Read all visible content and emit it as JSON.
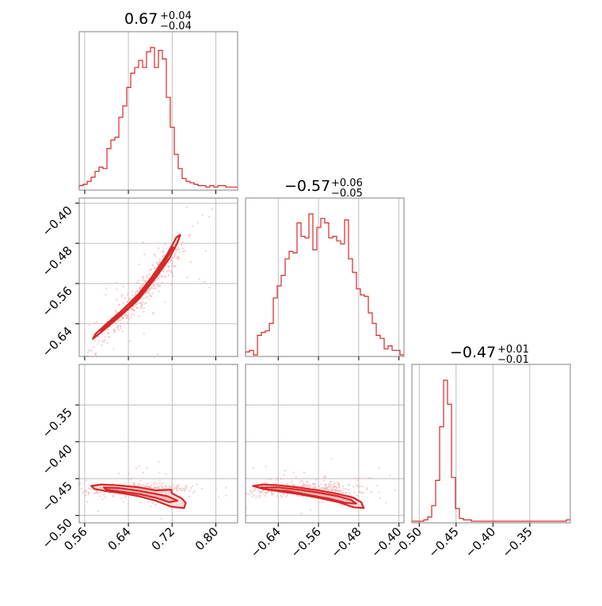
{
  "colors": {
    "accent": "#d62728",
    "fill_light": "#f5c6c7",
    "fill_mid": "#ec9a9c",
    "points": "#f3b6b7"
  },
  "titles": {
    "p0": {
      "median": "0.67",
      "plus": "+0.04",
      "minus": "−0.04"
    },
    "p1": {
      "median": "−0.57",
      "plus": "+0.06",
      "minus": "−0.05"
    },
    "p2": {
      "median": "−0.47",
      "plus": "+0.01",
      "minus": "−0.01"
    }
  },
  "chart_data": {
    "type": "corner",
    "parameters": [
      "p0",
      "p1",
      "p2"
    ],
    "ranges": {
      "p0": [
        0.55,
        0.84
      ],
      "p1": [
        -0.705,
        -0.39
      ],
      "p2": [
        -0.51,
        -0.295
      ]
    },
    "ticks": {
      "p0": [
        0.56,
        0.64,
        0.72,
        0.8
      ],
      "p1": [
        -0.64,
        -0.56,
        -0.48,
        -0.4
      ],
      "p2": [
        -0.5,
        -0.45,
        -0.4,
        -0.35
      ]
    },
    "tick_labels": {
      "p0": [
        "0.56",
        "0.64",
        "0.72",
        "0.80"
      ],
      "p1": [
        "−0.64",
        "−0.56",
        "−0.48",
        "−0.40"
      ],
      "p2": [
        "−0.50",
        "−0.45",
        "−0.40",
        "−0.35"
      ]
    },
    "grid": true,
    "histograms": {
      "p0": {
        "edges_start": 0.55,
        "bin_width": 0.00725,
        "counts": [
          2,
          3,
          5,
          8,
          12,
          15,
          14,
          28,
          34,
          36,
          50,
          58,
          71,
          81,
          85,
          90,
          85,
          96,
          99,
          85,
          97,
          91,
          64,
          43,
          24,
          14,
          7,
          5,
          4,
          3,
          2,
          2,
          1,
          2,
          1,
          2,
          2,
          1,
          1,
          1
        ]
      },
      "p1": {
        "edges_start": -0.705,
        "bin_width": 0.007875,
        "counts": [
          2,
          3,
          0,
          13,
          15,
          16,
          21,
          38,
          46,
          53,
          64,
          69,
          68,
          88,
          79,
          78,
          94,
          70,
          85,
          91,
          88,
          78,
          79,
          76,
          74,
          90,
          64,
          55,
          44,
          40,
          39,
          28,
          21,
          13,
          11,
          4,
          6,
          3,
          3,
          0
        ]
      },
      "p2": {
        "edges_start": -0.51,
        "bin_width": 0.005375,
        "counts": [
          0,
          0,
          0,
          1,
          3,
          11,
          29,
          67,
          100,
          83,
          31,
          9,
          2,
          1,
          1,
          0,
          0,
          0,
          0,
          0,
          0,
          0,
          0,
          0,
          0,
          0,
          0,
          0,
          0,
          0,
          0,
          0,
          0,
          0,
          0,
          0,
          0,
          0,
          0,
          1
        ]
      }
    },
    "scatter_2d": {
      "p1_vs_p0": {
        "x": "p0",
        "y": "p1",
        "center": [
          0.665,
          -0.577
        ],
        "span_x": [
          0.575,
          0.735
        ],
        "span_y": [
          -0.675,
          -0.465
        ]
      },
      "p2_vs_p0": {
        "x": "p0",
        "y": "p2",
        "center": [
          0.66,
          -0.465
        ],
        "span_x": [
          0.575,
          0.745
        ],
        "span_y": [
          -0.485,
          -0.455
        ]
      },
      "p2_vs_p1": {
        "x": "p1",
        "y": "p2",
        "center": [
          -0.59,
          -0.465
        ],
        "span_x": [
          -0.69,
          -0.47
        ],
        "span_y": [
          -0.49,
          -0.455
        ]
      }
    },
    "contours": {
      "p1_vs_p0": [
        [
          [
            0.575,
            -0.67
          ],
          [
            0.6,
            -0.648
          ],
          [
            0.63,
            -0.62
          ],
          [
            0.66,
            -0.59
          ],
          [
            0.69,
            -0.548
          ],
          [
            0.715,
            -0.51
          ],
          [
            0.73,
            -0.478
          ],
          [
            0.735,
            -0.463
          ],
          [
            0.728,
            -0.468
          ],
          [
            0.712,
            -0.5
          ],
          [
            0.688,
            -0.54
          ],
          [
            0.658,
            -0.582
          ],
          [
            0.628,
            -0.614
          ],
          [
            0.598,
            -0.642
          ],
          [
            0.58,
            -0.66
          ],
          [
            0.575,
            -0.67
          ]
        ],
        [
          [
            0.59,
            -0.655
          ],
          [
            0.62,
            -0.628
          ],
          [
            0.65,
            -0.598
          ],
          [
            0.68,
            -0.56
          ],
          [
            0.705,
            -0.52
          ],
          [
            0.722,
            -0.488
          ],
          [
            0.716,
            -0.492
          ],
          [
            0.698,
            -0.528
          ],
          [
            0.672,
            -0.566
          ],
          [
            0.645,
            -0.598
          ],
          [
            0.615,
            -0.627
          ],
          [
            0.595,
            -0.648
          ],
          [
            0.59,
            -0.655
          ]
        ],
        [
          [
            0.61,
            -0.637
          ],
          [
            0.64,
            -0.608
          ],
          [
            0.668,
            -0.574
          ],
          [
            0.692,
            -0.54
          ],
          [
            0.708,
            -0.513
          ],
          [
            0.7,
            -0.52
          ],
          [
            0.68,
            -0.552
          ],
          [
            0.658,
            -0.582
          ],
          [
            0.632,
            -0.61
          ],
          [
            0.612,
            -0.632
          ],
          [
            0.61,
            -0.637
          ]
        ]
      ],
      "p2_vs_p0": [
        [
          [
            0.572,
            -0.46
          ],
          [
            0.59,
            -0.458
          ],
          [
            0.62,
            -0.459
          ],
          [
            0.66,
            -0.462
          ],
          [
            0.69,
            -0.466
          ],
          [
            0.718,
            -0.465
          ],
          [
            0.72,
            -0.47
          ],
          [
            0.738,
            -0.477
          ],
          [
            0.745,
            -0.483
          ],
          [
            0.742,
            -0.49
          ],
          [
            0.718,
            -0.488
          ],
          [
            0.69,
            -0.48
          ],
          [
            0.66,
            -0.474
          ],
          [
            0.63,
            -0.47
          ],
          [
            0.6,
            -0.467
          ],
          [
            0.578,
            -0.464
          ],
          [
            0.572,
            -0.46
          ]
        ],
        [
          [
            0.595,
            -0.462
          ],
          [
            0.625,
            -0.463
          ],
          [
            0.655,
            -0.466
          ],
          [
            0.685,
            -0.47
          ],
          [
            0.712,
            -0.474
          ],
          [
            0.73,
            -0.48
          ],
          [
            0.715,
            -0.482
          ],
          [
            0.69,
            -0.476
          ],
          [
            0.66,
            -0.471
          ],
          [
            0.63,
            -0.468
          ],
          [
            0.6,
            -0.465
          ],
          [
            0.595,
            -0.462
          ]
        ]
      ],
      "p2_vs_p1": [
        [
          [
            -0.69,
            -0.46
          ],
          [
            -0.67,
            -0.458
          ],
          [
            -0.64,
            -0.459
          ],
          [
            -0.6,
            -0.462
          ],
          [
            -0.56,
            -0.466
          ],
          [
            -0.52,
            -0.471
          ],
          [
            -0.49,
            -0.476
          ],
          [
            -0.475,
            -0.482
          ],
          [
            -0.47,
            -0.49
          ],
          [
            -0.49,
            -0.489
          ],
          [
            -0.52,
            -0.482
          ],
          [
            -0.56,
            -0.476
          ],
          [
            -0.6,
            -0.471
          ],
          [
            -0.64,
            -0.467
          ],
          [
            -0.67,
            -0.464
          ],
          [
            -0.69,
            -0.46
          ]
        ],
        [
          [
            -0.675,
            -0.462
          ],
          [
            -0.64,
            -0.462
          ],
          [
            -0.6,
            -0.465
          ],
          [
            -0.56,
            -0.469
          ],
          [
            -0.52,
            -0.474
          ],
          [
            -0.495,
            -0.479
          ],
          [
            -0.485,
            -0.484
          ],
          [
            -0.505,
            -0.483
          ],
          [
            -0.54,
            -0.477
          ],
          [
            -0.58,
            -0.472
          ],
          [
            -0.62,
            -0.467
          ],
          [
            -0.66,
            -0.465
          ],
          [
            -0.675,
            -0.462
          ]
        ]
      ]
    }
  }
}
